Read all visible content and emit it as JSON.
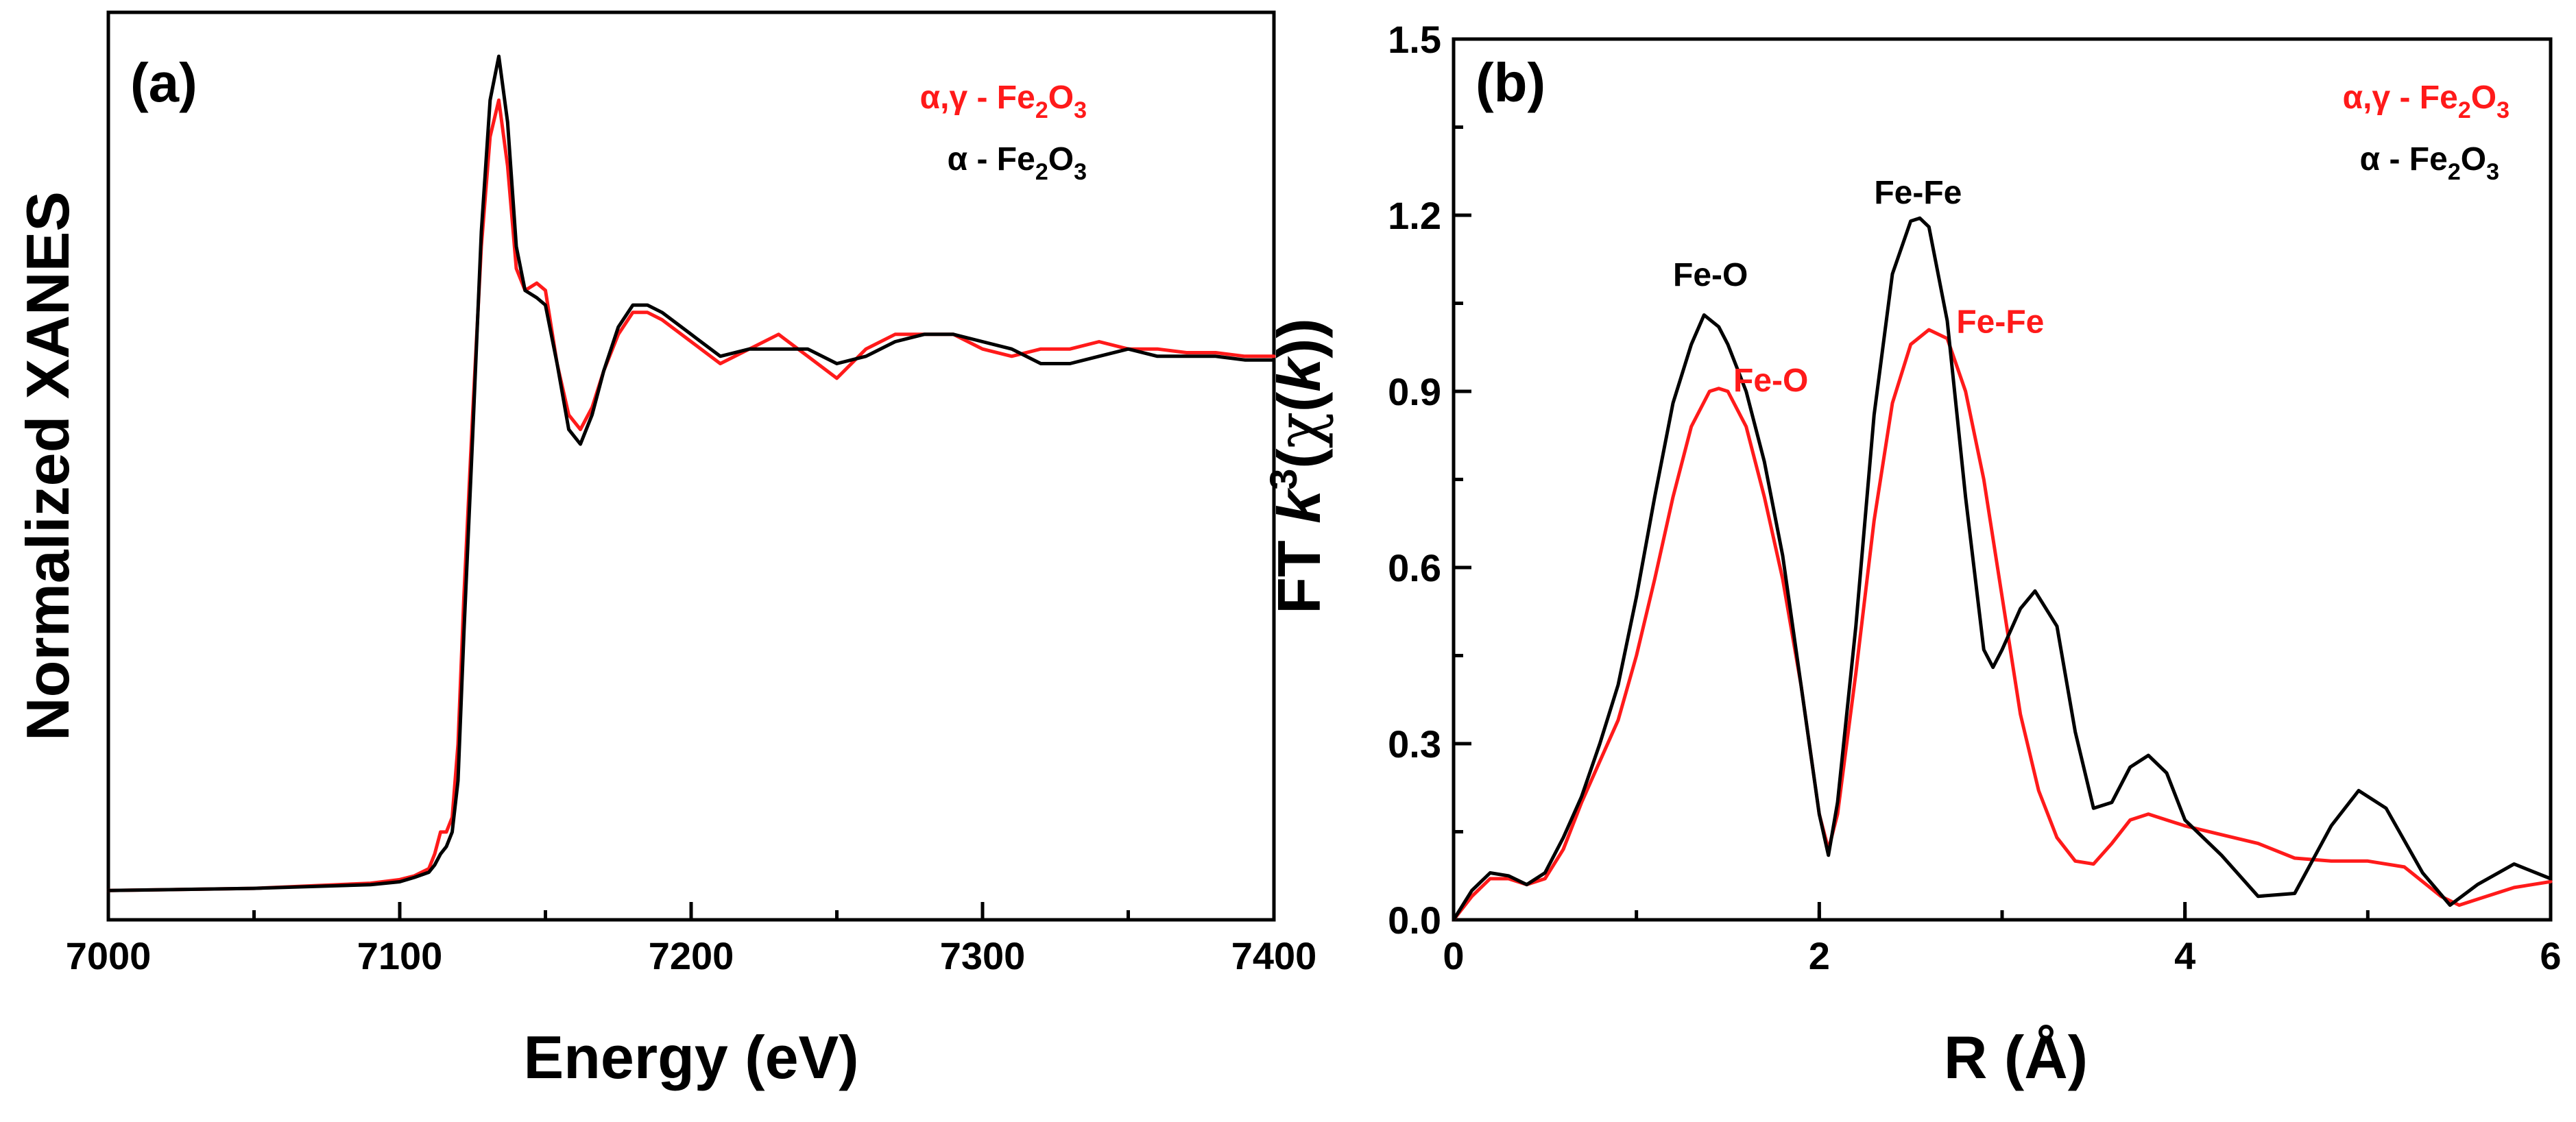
{
  "colors": {
    "red": "#ff1a1a",
    "black": "#000000",
    "background": "#ffffff"
  },
  "chart_data": [
    {
      "type": "line",
      "panel": "(a)",
      "title": "",
      "xlabel": "Energy (eV)",
      "ylabel": "Normalized XANES",
      "xlim": [
        7000,
        7400
      ],
      "ylim": [
        -0.04,
        1.2
      ],
      "y_ticks_shown": false,
      "x_ticks": [
        7000,
        7100,
        7200,
        7300,
        7400
      ],
      "x_tick_labels": [
        "7000",
        "7100",
        "7200",
        "7300",
        "7400"
      ],
      "legend_position": "top-right",
      "series": [
        {
          "name": "α,γ - Fe2O3",
          "legend": {
            "main": "α,γ - Fe",
            "sub1": "2",
            "mid": "O",
            "sub2": "3"
          },
          "color": "#ff1a1a",
          "x": [
            7000,
            7050,
            7090,
            7100,
            7105,
            7110,
            7112,
            7114,
            7116,
            7118,
            7120,
            7122,
            7125,
            7128,
            7131,
            7134,
            7137,
            7140,
            7143,
            7147,
            7150,
            7154,
            7158,
            7162,
            7166,
            7170,
            7175,
            7180,
            7185,
            7190,
            7200,
            7210,
            7220,
            7230,
            7240,
            7250,
            7260,
            7270,
            7280,
            7290,
            7300,
            7310,
            7320,
            7330,
            7340,
            7350,
            7360,
            7370,
            7380,
            7390,
            7400
          ],
          "y": [
            0.0,
            0.003,
            0.01,
            0.015,
            0.02,
            0.03,
            0.05,
            0.08,
            0.08,
            0.1,
            0.2,
            0.4,
            0.65,
            0.88,
            1.03,
            1.08,
            0.99,
            0.85,
            0.82,
            0.83,
            0.82,
            0.72,
            0.65,
            0.63,
            0.66,
            0.71,
            0.76,
            0.79,
            0.79,
            0.78,
            0.75,
            0.72,
            0.74,
            0.76,
            0.73,
            0.7,
            0.74,
            0.76,
            0.76,
            0.76,
            0.74,
            0.73,
            0.74,
            0.74,
            0.75,
            0.74,
            0.74,
            0.735,
            0.735,
            0.73,
            0.73
          ]
        },
        {
          "name": "α - Fe2O3",
          "legend": {
            "main": "α - Fe",
            "sub1": "2",
            "mid": "O",
            "sub2": "3"
          },
          "color": "#000000",
          "x": [
            7000,
            7050,
            7090,
            7100,
            7105,
            7110,
            7112,
            7114,
            7116,
            7118,
            7120,
            7122,
            7125,
            7128,
            7131,
            7134,
            7137,
            7140,
            7143,
            7147,
            7150,
            7154,
            7158,
            7162,
            7166,
            7170,
            7175,
            7180,
            7185,
            7190,
            7200,
            7210,
            7220,
            7230,
            7240,
            7250,
            7260,
            7270,
            7280,
            7290,
            7300,
            7310,
            7320,
            7330,
            7340,
            7350,
            7360,
            7370,
            7380,
            7390,
            7400
          ],
          "y": [
            0.0,
            0.003,
            0.008,
            0.012,
            0.018,
            0.025,
            0.035,
            0.05,
            0.06,
            0.08,
            0.15,
            0.35,
            0.62,
            0.9,
            1.08,
            1.14,
            1.05,
            0.88,
            0.82,
            0.81,
            0.8,
            0.72,
            0.63,
            0.61,
            0.65,
            0.71,
            0.77,
            0.8,
            0.8,
            0.79,
            0.76,
            0.73,
            0.74,
            0.74,
            0.74,
            0.72,
            0.73,
            0.75,
            0.76,
            0.76,
            0.75,
            0.74,
            0.72,
            0.72,
            0.73,
            0.74,
            0.73,
            0.73,
            0.73,
            0.725,
            0.725
          ]
        }
      ],
      "annotations": []
    },
    {
      "type": "line",
      "panel": "(b)",
      "title": "",
      "xlabel": "R (Å)",
      "ylabel": {
        "prefix": "FT ",
        "k": "k",
        "sup": "3",
        "paren_open": "(",
        "chi": "χ",
        "inner_open": "(",
        "k2": "k",
        "close": "))"
      },
      "xlim": [
        0,
        6
      ],
      "ylim": [
        0,
        1.5
      ],
      "x_ticks": [
        0,
        2,
        4,
        6
      ],
      "x_tick_labels": [
        "0",
        "2",
        "4",
        "6"
      ],
      "y_ticks": [
        0.0,
        0.3,
        0.6,
        0.9,
        1.2,
        1.5
      ],
      "y_tick_labels": [
        "0.0",
        "0.3",
        "0.6",
        "0.9",
        "1.2",
        "1.5"
      ],
      "legend_position": "top-right",
      "series": [
        {
          "name": "α,γ - Fe2O3",
          "legend": {
            "main": "α,γ - Fe",
            "sub1": "2",
            "mid": "O",
            "sub2": "3"
          },
          "color": "#ff1a1a",
          "x": [
            0.0,
            0.1,
            0.2,
            0.3,
            0.4,
            0.5,
            0.6,
            0.7,
            0.8,
            0.9,
            1.0,
            1.1,
            1.2,
            1.3,
            1.4,
            1.45,
            1.5,
            1.6,
            1.7,
            1.8,
            1.9,
            2.0,
            2.05,
            2.1,
            2.2,
            2.3,
            2.4,
            2.5,
            2.6,
            2.7,
            2.8,
            2.9,
            3.0,
            3.1,
            3.2,
            3.3,
            3.4,
            3.5,
            3.6,
            3.7,
            3.8,
            3.9,
            4.0,
            4.2,
            4.4,
            4.6,
            4.8,
            5.0,
            5.2,
            5.4,
            5.5,
            5.6,
            5.8,
            6.0
          ],
          "y": [
            0.0,
            0.04,
            0.07,
            0.07,
            0.06,
            0.07,
            0.12,
            0.2,
            0.27,
            0.34,
            0.45,
            0.58,
            0.72,
            0.84,
            0.9,
            0.905,
            0.9,
            0.84,
            0.72,
            0.58,
            0.4,
            0.18,
            0.12,
            0.18,
            0.42,
            0.68,
            0.88,
            0.98,
            1.005,
            0.99,
            0.9,
            0.75,
            0.55,
            0.35,
            0.22,
            0.14,
            0.1,
            0.095,
            0.13,
            0.17,
            0.18,
            0.17,
            0.16,
            0.145,
            0.13,
            0.105,
            0.1,
            0.1,
            0.09,
            0.04,
            0.025,
            0.035,
            0.055,
            0.065
          ]
        },
        {
          "name": "α - Fe2O3",
          "legend": {
            "main": "α - Fe",
            "sub1": "2",
            "mid": "O",
            "sub2": "3"
          },
          "color": "#000000",
          "x": [
            0.0,
            0.1,
            0.2,
            0.3,
            0.4,
            0.5,
            0.6,
            0.7,
            0.8,
            0.9,
            1.0,
            1.1,
            1.2,
            1.3,
            1.37,
            1.45,
            1.5,
            1.6,
            1.7,
            1.8,
            1.9,
            2.0,
            2.05,
            2.1,
            2.2,
            2.3,
            2.4,
            2.5,
            2.55,
            2.6,
            2.7,
            2.8,
            2.9,
            2.95,
            3.0,
            3.1,
            3.18,
            3.3,
            3.4,
            3.5,
            3.6,
            3.7,
            3.8,
            3.9,
            4.0,
            4.2,
            4.4,
            4.6,
            4.8,
            4.95,
            5.1,
            5.3,
            5.45,
            5.6,
            5.8,
            6.0
          ],
          "y": [
            0.0,
            0.05,
            0.08,
            0.075,
            0.06,
            0.08,
            0.14,
            0.21,
            0.3,
            0.4,
            0.55,
            0.72,
            0.88,
            0.98,
            1.03,
            1.01,
            0.98,
            0.9,
            0.78,
            0.62,
            0.4,
            0.18,
            0.11,
            0.2,
            0.5,
            0.86,
            1.1,
            1.19,
            1.195,
            1.18,
            1.02,
            0.72,
            0.46,
            0.43,
            0.46,
            0.53,
            0.56,
            0.5,
            0.32,
            0.19,
            0.2,
            0.26,
            0.28,
            0.25,
            0.17,
            0.11,
            0.04,
            0.045,
            0.16,
            0.22,
            0.19,
            0.08,
            0.025,
            0.06,
            0.095,
            0.07
          ]
        }
      ],
      "annotations": [
        {
          "text": "Fe-O",
          "color": "#000000",
          "x": 1.2,
          "y": 1.08
        },
        {
          "text": "Fe-O",
          "color": "#ff1a1a",
          "x": 1.53,
          "y": 0.9
        },
        {
          "text": "Fe-Fe",
          "color": "#000000",
          "x": 2.3,
          "y": 1.22
        },
        {
          "text": "Fe-Fe",
          "color": "#ff1a1a",
          "x": 2.75,
          "y": 1.0
        }
      ]
    }
  ]
}
